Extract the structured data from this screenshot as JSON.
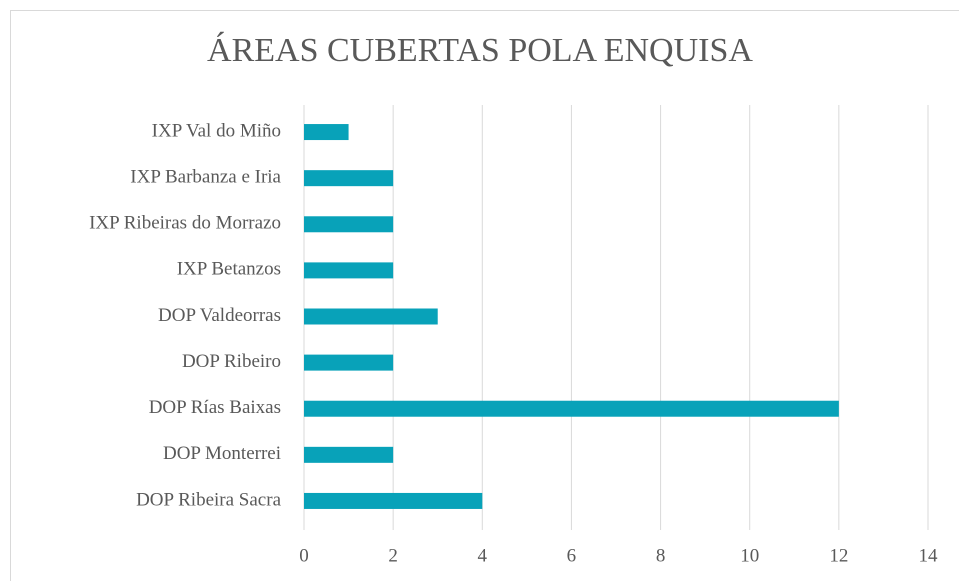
{
  "chart_data": {
    "type": "barh",
    "title": "ÁREAS CUBERTAS POLA ENQUISA",
    "categories": [
      "IXP Val do Miño",
      "IXP Barbanza e Iria",
      "IXP Ribeiras do Morrazo",
      "IXP Betanzos",
      "DOP Valdeorras",
      "DOP Ribeiro",
      "DOP Rías Baixas",
      "DOP Monterrei",
      "DOP Ribeira Sacra"
    ],
    "values": [
      1,
      2,
      2,
      2,
      3,
      2,
      12,
      2,
      4
    ],
    "color": "#08a2b9",
    "xlim": [
      0,
      14
    ],
    "xticks": [
      0,
      2,
      4,
      6,
      8,
      10,
      12,
      14
    ],
    "grid": true
  }
}
